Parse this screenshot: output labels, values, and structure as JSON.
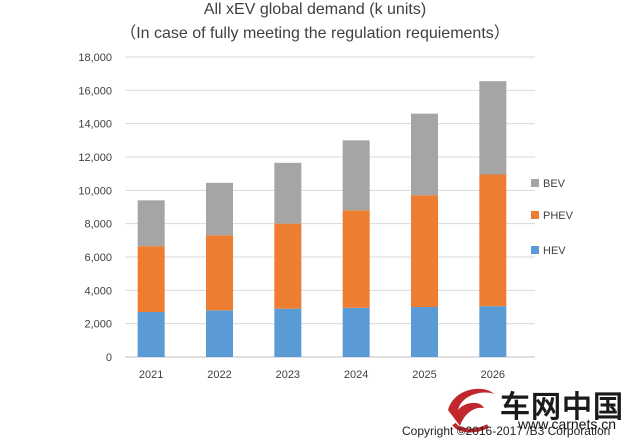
{
  "chart_data": {
    "type": "bar",
    "stacked": true,
    "title": "All xEV global demand (k units)",
    "subtitle": "（In case of fully meeting the regulation requiements）",
    "categories": [
      "2021",
      "2022",
      "2023",
      "2024",
      "2025",
      "2026"
    ],
    "series": [
      {
        "name": "HEV",
        "color": "#5b9bd5",
        "values": [
          2700,
          2800,
          2900,
          2950,
          3000,
          3050
        ]
      },
      {
        "name": "PHEV",
        "color": "#ed7d31",
        "values": [
          3950,
          4500,
          5100,
          5850,
          6700,
          7900
        ]
      },
      {
        "name": "BEV",
        "color": "#a5a5a5",
        "values": [
          2750,
          3150,
          3650,
          4200,
          4900,
          5600
        ]
      }
    ],
    "ylim": [
      0,
      18000
    ],
    "yticks": [
      "0",
      "2,000",
      "4,000",
      "6,000",
      "8,000",
      "10,000",
      "12,000",
      "14,000",
      "16,000",
      "18,000"
    ],
    "ytick_values": [
      0,
      2000,
      4000,
      6000,
      8000,
      10000,
      12000,
      14000,
      16000,
      18000
    ],
    "xlabel": "",
    "ylabel": "",
    "grid": true,
    "legend_position": "right",
    "legend_order": [
      "BEV",
      "PHEV",
      "HEV"
    ]
  },
  "watermark": {
    "brand_cn": "车网中国",
    "url": "www.carnets.cn",
    "copyright": "Copyright ©2016-2017 /B3 Corporation",
    "logo_color": "#c0282d"
  }
}
